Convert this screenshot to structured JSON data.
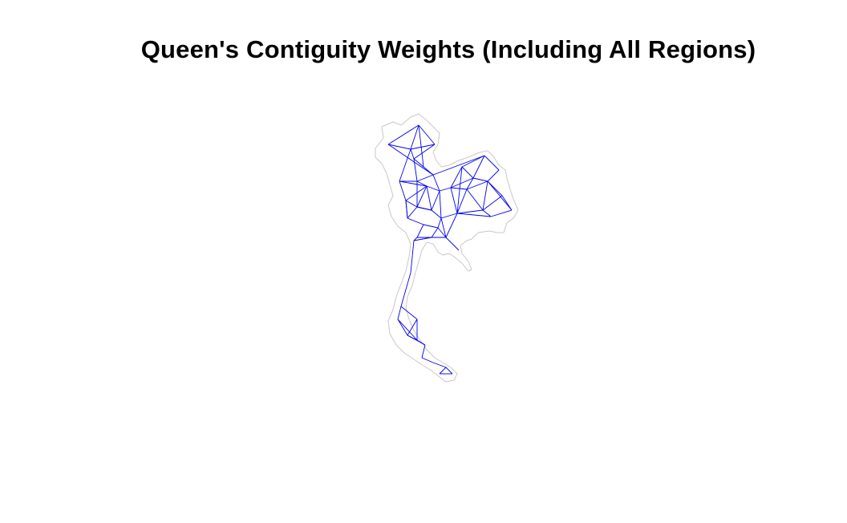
{
  "title": "Queen's Contiguity Weights (Including All Regions)",
  "colors": {
    "background": "#ffffff",
    "boundary": "#c8c8c8",
    "network": "#0000ee",
    "title": "#000000"
  },
  "layers": {
    "boundaries": "province outlines (light grey)",
    "links": "queen contiguity neighbour links (blue)"
  }
}
